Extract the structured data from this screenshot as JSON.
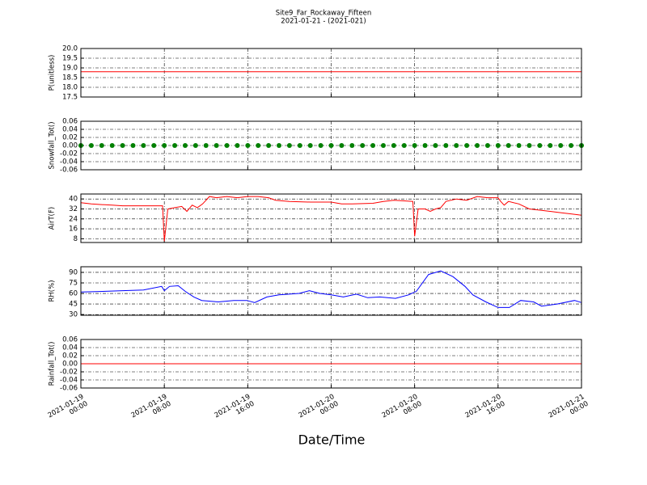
{
  "title": "Site9_Far_Rockaway_Fifteen",
  "subtitle": "2021-01-21 - (2021-021)",
  "xlabel": "Date/Time",
  "chart_data": [
    {
      "type": "line",
      "ylabel": "P(unitless)",
      "color": "#ff0000",
      "grid": true,
      "x": [
        "2021-01-19 00:00",
        "2021-01-21 00:00"
      ],
      "values": [
        18.8,
        18.8
      ],
      "ylim": [
        17.5,
        20
      ],
      "yticks": [
        17.5,
        {
          "value": 18,
          "label": "18.0"
        },
        18.5,
        {
          "value": 19,
          "label": "19.0"
        },
        19.5,
        {
          "value": 20,
          "label": "20.0"
        }
      ]
    },
    {
      "type": "scatter",
      "ylabel": "Snowfall_Tot()",
      "color": "#008000",
      "grid": true,
      "x": [
        "2021-01-19 00:00",
        "2021-01-19 01:00",
        "2021-01-19 02:00",
        "2021-01-19 03:00",
        "2021-01-19 04:00",
        "2021-01-19 05:00",
        "2021-01-19 06:00",
        "2021-01-19 07:00",
        "2021-01-19 08:00",
        "2021-01-19 09:00",
        "2021-01-19 10:00",
        "2021-01-19 11:00",
        "2021-01-19 12:00",
        "2021-01-19 13:00",
        "2021-01-19 14:00",
        "2021-01-19 15:00",
        "2021-01-19 16:00",
        "2021-01-19 17:00",
        "2021-01-19 18:00",
        "2021-01-19 19:00",
        "2021-01-19 20:00",
        "2021-01-19 21:00",
        "2021-01-19 22:00",
        "2021-01-19 23:00",
        "2021-01-20 00:00",
        "2021-01-20 01:00",
        "2021-01-20 02:00",
        "2021-01-20 03:00",
        "2021-01-20 04:00",
        "2021-01-20 05:00",
        "2021-01-20 06:00",
        "2021-01-20 07:00",
        "2021-01-20 08:00",
        "2021-01-20 09:00",
        "2021-01-20 10:00",
        "2021-01-20 11:00",
        "2021-01-20 12:00",
        "2021-01-20 13:00",
        "2021-01-20 14:00",
        "2021-01-20 15:00",
        "2021-01-20 16:00",
        "2021-01-20 17:00",
        "2021-01-20 18:00",
        "2021-01-20 19:00",
        "2021-01-20 20:00",
        "2021-01-20 21:00",
        "2021-01-20 22:00",
        "2021-01-20 23:00",
        "2021-01-21 00:00"
      ],
      "values": [
        0,
        0,
        0,
        0,
        0,
        0,
        0,
        0,
        0,
        0,
        0,
        0,
        0,
        0,
        0,
        0,
        0,
        0,
        0,
        0,
        0,
        0,
        0,
        0,
        0,
        0,
        0,
        0,
        0,
        0,
        0,
        0,
        0,
        0,
        0,
        0,
        0,
        0,
        0,
        0,
        0,
        0,
        0,
        0,
        0,
        0,
        0,
        0,
        0
      ],
      "ylim": [
        -0.06,
        0.06
      ],
      "yticks": [
        -0.06,
        -0.04,
        -0.02,
        {
          "value": 0,
          "label": "0.00"
        },
        0.02,
        0.04,
        0.06
      ]
    },
    {
      "type": "line",
      "ylabel": "AirT(F)",
      "color": "#ff0000",
      "grid": true,
      "x": [
        "2021-01-19 00:00",
        "2021-01-19 01:00",
        "2021-01-19 02:00",
        "2021-01-19 03:00",
        "2021-01-19 04:00",
        "2021-01-19 05:00",
        "2021-01-19 06:00",
        "2021-01-19 07:00",
        "2021-01-19 07:50",
        "2021-01-19 08:00",
        "2021-01-19 08:20",
        "2021-01-19 09:00",
        "2021-01-19 09:40",
        "2021-01-19 10:10",
        "2021-01-19 10:40",
        "2021-01-19 11:10",
        "2021-01-19 11:40",
        "2021-01-19 12:20",
        "2021-01-19 13:00",
        "2021-01-19 14:00",
        "2021-01-19 15:00",
        "2021-01-19 16:00",
        "2021-01-19 17:00",
        "2021-01-19 18:00",
        "2021-01-19 18:40",
        "2021-01-19 20:00",
        "2021-01-19 22:00",
        "2021-01-20 00:00",
        "2021-01-20 01:00",
        "2021-01-20 02:00",
        "2021-01-20 04:00",
        "2021-01-20 05:00",
        "2021-01-20 06:00",
        "2021-01-20 07:00",
        "2021-01-20 07:50",
        "2021-01-20 08:00",
        "2021-01-20 08:20",
        "2021-01-20 09:00",
        "2021-01-20 09:30",
        "2021-01-20 10:00",
        "2021-01-20 10:30",
        "2021-01-20 11:00",
        "2021-01-20 12:00",
        "2021-01-20 13:00",
        "2021-01-20 14:00",
        "2021-01-20 15:00",
        "2021-01-20 16:00",
        "2021-01-20 16:15",
        "2021-01-20 16:35",
        "2021-01-20 17:00",
        "2021-01-20 18:00",
        "2021-01-20 19:00",
        "2021-01-20 20:00",
        "2021-01-20 21:00",
        "2021-01-20 22:00",
        "2021-01-20 23:00",
        "2021-01-21 00:00"
      ],
      "values": [
        37,
        36,
        35.5,
        35,
        34.5,
        34.5,
        34.5,
        34.5,
        34.5,
        6,
        32,
        33,
        34,
        30,
        35,
        33,
        36,
        42,
        41,
        42,
        41,
        42,
        42,
        41,
        39,
        38,
        37.5,
        37.5,
        36,
        36,
        36.5,
        38,
        39,
        38.5,
        38,
        10,
        32,
        32,
        30,
        32,
        33,
        38,
        40,
        39,
        42,
        41,
        41,
        38,
        35,
        38,
        36,
        32,
        31,
        30,
        29,
        28,
        27
      ],
      "ylim": [
        5,
        44
      ],
      "yticks": [
        8,
        16,
        24,
        32,
        40
      ]
    },
    {
      "type": "line",
      "ylabel": "RH(%)",
      "color": "#0000ff",
      "grid": true,
      "x": [
        "2021-01-19 00:00",
        "2021-01-19 02:20",
        "2021-01-19 04:00",
        "2021-01-19 06:00",
        "2021-01-19 07:45",
        "2021-01-19 08:00",
        "2021-01-19 08:30",
        "2021-01-19 09:20",
        "2021-01-19 10:00",
        "2021-01-19 10:50",
        "2021-01-19 11:35",
        "2021-01-19 13:10",
        "2021-01-19 14:40",
        "2021-01-19 15:55",
        "2021-01-19 16:40",
        "2021-01-19 17:50",
        "2021-01-19 19:00",
        "2021-01-19 20:55",
        "2021-01-19 21:55",
        "2021-01-19 22:55",
        "2021-01-20 00:00",
        "2021-01-20 01:10",
        "2021-01-20 02:25",
        "2021-01-20 03:30",
        "2021-01-20 04:40",
        "2021-01-20 06:10",
        "2021-01-20 07:25",
        "2021-01-20 08:10",
        "2021-01-20 09:20",
        "2021-01-20 10:30",
        "2021-01-20 11:40",
        "2021-01-20 12:50",
        "2021-01-20 13:35",
        "2021-01-20 14:50",
        "2021-01-20 16:00",
        "2021-01-20 17:05",
        "2021-01-20 18:10",
        "2021-01-20 19:25",
        "2021-01-20 20:10",
        "2021-01-20 21:40",
        "2021-01-20 23:20",
        "2021-01-21 00:00"
      ],
      "values": [
        62,
        63,
        64,
        65,
        70,
        64,
        70,
        71,
        63,
        55,
        50,
        48,
        50,
        50,
        47,
        55,
        58,
        60,
        64,
        60,
        58,
        55,
        59,
        54,
        55,
        53,
        58,
        63,
        87,
        92,
        84,
        70,
        58,
        48,
        40,
        40,
        50,
        48,
        42,
        45,
        50,
        47
      ],
      "ylim": [
        29,
        98
      ],
      "yticks": [
        30,
        45,
        60,
        75,
        90
      ]
    },
    {
      "type": "line",
      "ylabel": "Rainfall_Tot()",
      "color": "#ff0000",
      "grid": true,
      "x": [
        "2021-01-19 00:00",
        "2021-01-21 00:00"
      ],
      "values": [
        0,
        0
      ],
      "ylim": [
        -0.06,
        0.06
      ],
      "yticks": [
        -0.06,
        -0.04,
        -0.02,
        {
          "value": 0,
          "label": "0.00"
        },
        0.02,
        0.04,
        0.06
      ],
      "xlim": [
        "2021-01-19 00:00",
        "2021-01-21 00:00"
      ],
      "xticks": [
        {
          "value": "2021-01-19 00:00",
          "label": "2021-01-19\n00:00"
        },
        {
          "value": "2021-01-19 08:00",
          "label": "2021-01-19\n08:00"
        },
        {
          "value": "2021-01-19 16:00",
          "label": "2021-01-19\n16:00"
        },
        {
          "value": "2021-01-20 00:00",
          "label": "2021-01-20\n00:00"
        },
        {
          "value": "2021-01-20 08:00",
          "label": "2021-01-20\n08:00"
        },
        {
          "value": "2021-01-20 16:00",
          "label": "2021-01-20\n16:00"
        },
        {
          "value": "2021-01-21 00:00",
          "label": "2021-01-21\n00:00"
        }
      ]
    }
  ]
}
